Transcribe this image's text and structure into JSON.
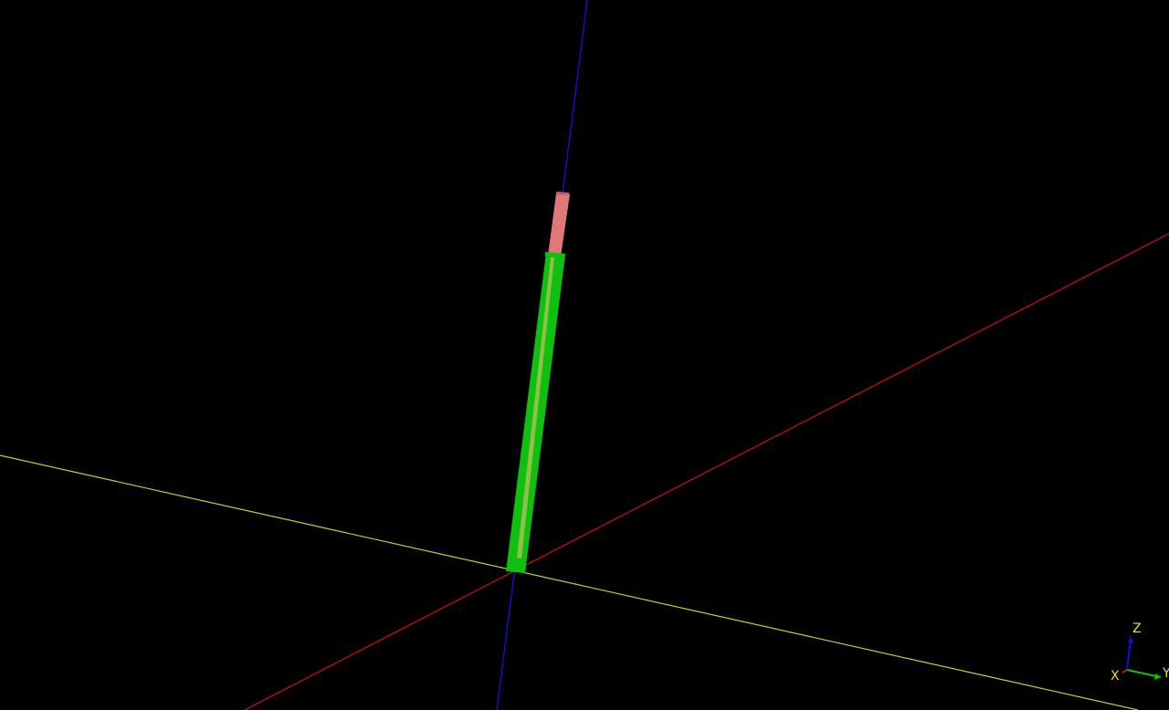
{
  "viewer": {
    "background": "#000000"
  },
  "axes": {
    "x": {
      "color": "#d01010"
    },
    "y": {
      "color": "#c8d030"
    },
    "z": {
      "color": "#1010d8"
    }
  },
  "model": {
    "upper_segment": {
      "color": "#e0787a",
      "edge_color": "#c25e62"
    },
    "lower_segment": {
      "color": "#10c010",
      "stripe_color": "#8fc048"
    }
  },
  "orientation_gizmo": {
    "x_label": "X",
    "y_label": "Y",
    "z_label": "Z",
    "label_color": "#e8e020",
    "x_color": "#d01010",
    "y_color": "#10c010",
    "z_color": "#1010d8"
  }
}
